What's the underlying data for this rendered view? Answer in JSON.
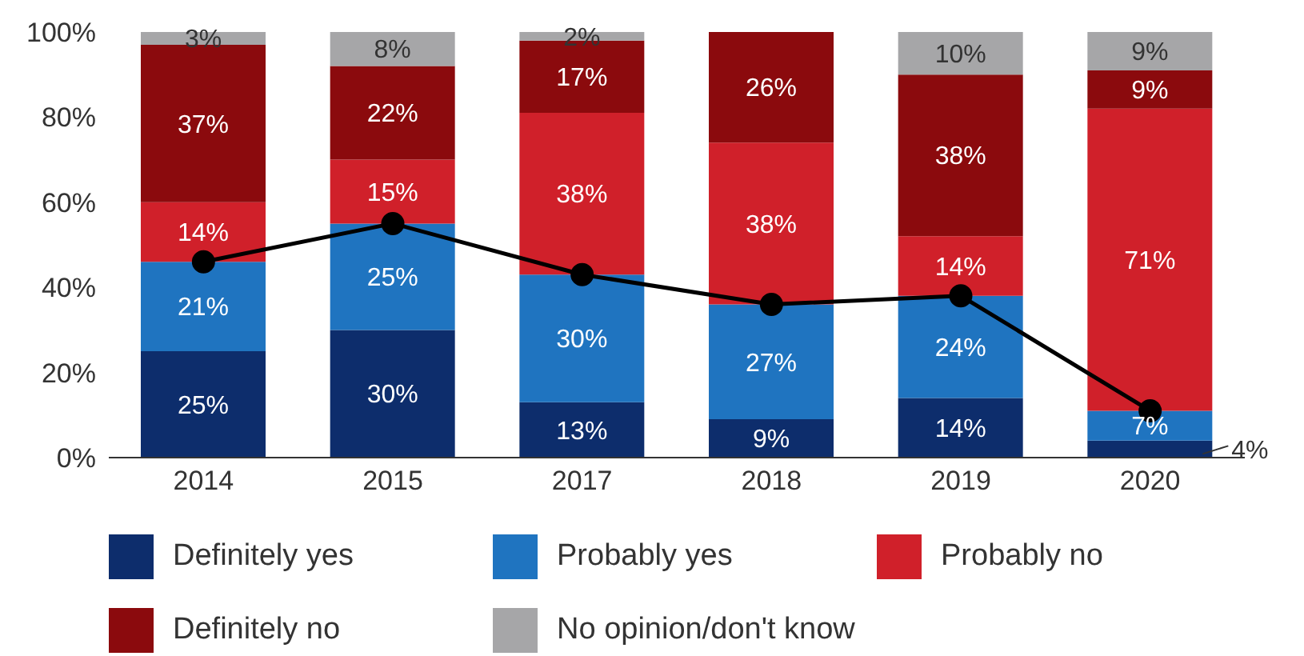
{
  "chart_data": {
    "type": "bar",
    "stacked": true,
    "categories": [
      "2014",
      "2015",
      "2017",
      "2018",
      "2019",
      "2020"
    ],
    "series": [
      {
        "name": "Definitely yes",
        "color": "#0d2d6c",
        "values": [
          25,
          30,
          13,
          9,
          14,
          4
        ],
        "value_labels": [
          "25%",
          "30%",
          "13%",
          "9%",
          "14%",
          "4%"
        ]
      },
      {
        "name": "Probably yes",
        "color": "#1f74c0",
        "values": [
          21,
          25,
          30,
          27,
          24,
          7
        ],
        "value_labels": [
          "21%",
          "25%",
          "30%",
          "27%",
          "24%",
          "7%"
        ]
      },
      {
        "name": "Probably no",
        "color": "#d0202a",
        "values": [
          14,
          15,
          38,
          38,
          14,
          71
        ],
        "value_labels": [
          "14%",
          "15%",
          "38%",
          "38%",
          "14%",
          "71%"
        ]
      },
      {
        "name": "Definitely no",
        "color": "#8b0a0d",
        "values": [
          37,
          22,
          17,
          26,
          38,
          9
        ],
        "value_labels": [
          "37%",
          "22%",
          "17%",
          "26%",
          "38%",
          "9%"
        ]
      },
      {
        "name": "No opinion/don't know",
        "color": "#a6a6a8",
        "values": [
          3,
          8,
          2,
          0,
          10,
          9
        ],
        "value_labels": [
          "3%",
          "8%",
          "2%",
          null,
          "10%",
          "9%"
        ]
      },
      {
        "type": "line",
        "color": "#000000",
        "values": [
          46,
          55,
          43,
          36,
          38,
          11
        ]
      }
    ],
    "ylim": [
      0,
      100
    ],
    "yticks": [
      {
        "value": 0,
        "label": "0%"
      },
      {
        "value": 20,
        "label": "20%"
      },
      {
        "value": 40,
        "label": "40%"
      },
      {
        "value": 60,
        "label": "60%"
      },
      {
        "value": 80,
        "label": "80%"
      },
      {
        "value": 100,
        "label": "100%"
      }
    ],
    "grid": false,
    "legend": "bottom",
    "marker": "circle",
    "line_style": "solid"
  }
}
